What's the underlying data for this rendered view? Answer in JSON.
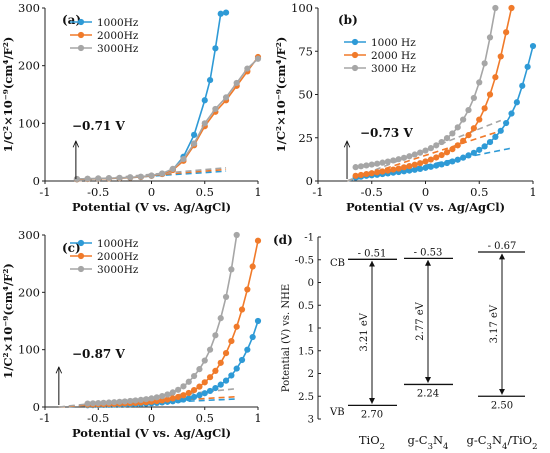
{
  "colors": {
    "1000Hz": "#2e9ad6",
    "2000Hz": "#f07a2a",
    "3000Hz": "#a6a6a6",
    "axis": "#222222"
  },
  "chart_data": [
    {
      "panel": "(a)",
      "type": "scatter",
      "xlabel": "Potential (V vs. Ag/AgCl)",
      "ylabel": "1/C²×10⁻⁹(cm⁴/F²)",
      "xlim": [
        -1,
        1
      ],
      "ylim": [
        0,
        300
      ],
      "xticks": [
        -1,
        -0.5,
        0,
        0.5,
        1
      ],
      "xtick_labels": [
        "-1",
        "-0.5",
        "0",
        "0.5",
        "1"
      ],
      "yticks": [
        0,
        100,
        200,
        300
      ],
      "ytick_labels": [
        "0",
        "100",
        "200",
        "300"
      ],
      "legend_position": "top-left",
      "annotation": "−0.71 V",
      "annotation_x": -0.71,
      "series": [
        {
          "name": "1000Hz",
          "x": [
            -0.7,
            -0.6,
            -0.5,
            -0.4,
            -0.3,
            -0.2,
            -0.1,
            0,
            0.1,
            0.2,
            0.3,
            0.4,
            0.5,
            0.55,
            0.6,
            0.65,
            0.7
          ],
          "y": [
            3,
            3.5,
            4,
            4.5,
            5,
            6,
            7,
            9,
            12,
            20,
            42,
            80,
            140,
            175,
            230,
            290,
            292
          ],
          "fit": {
            "x": [
              -0.71,
              0.7
            ],
            "y": [
              0,
              17
            ]
          }
        },
        {
          "name": "2000Hz",
          "x": [
            -0.7,
            -0.6,
            -0.5,
            -0.4,
            -0.3,
            -0.2,
            -0.1,
            0,
            0.1,
            0.2,
            0.3,
            0.4,
            0.5,
            0.6,
            0.7,
            0.8,
            0.9,
            1
          ],
          "y": [
            3,
            3.5,
            4,
            4.5,
            5,
            6,
            7,
            9,
            12,
            19,
            35,
            62,
            95,
            120,
            140,
            165,
            190,
            215
          ],
          "fit": {
            "x": [
              -0.71,
              0.7
            ],
            "y": [
              0,
              20
            ]
          }
        },
        {
          "name": "3000Hz",
          "x": [
            -0.7,
            -0.6,
            -0.5,
            -0.4,
            -0.3,
            -0.2,
            -0.1,
            0,
            0.1,
            0.2,
            0.3,
            0.4,
            0.5,
            0.6,
            0.7,
            0.8,
            0.9,
            1
          ],
          "y": [
            3.5,
            4,
            4.5,
            5,
            5.5,
            6.5,
            7.5,
            9.5,
            13,
            21,
            38,
            65,
            100,
            125,
            145,
            170,
            195,
            212
          ],
          "fit": {
            "x": [
              -0.71,
              0.7
            ],
            "y": [
              0,
              23
            ]
          }
        }
      ]
    },
    {
      "panel": "(b)",
      "type": "scatter",
      "xlabel": "Potential (V vs. Ag/AgCl)",
      "ylabel": "1/C²×10⁻⁹(cm⁴/F²)",
      "xlim": [
        -1,
        1
      ],
      "ylim": [
        0,
        100
      ],
      "xticks": [
        -1,
        -0.5,
        0,
        0.5,
        1
      ],
      "xtick_labels": [
        "-1",
        "-0.5",
        "0",
        "0.5",
        "1"
      ],
      "yticks": [
        0,
        25,
        50,
        75,
        100
      ],
      "ytick_labels": [
        "0",
        "25",
        "50",
        "75",
        "100"
      ],
      "legend_position": "top-left",
      "annotation": "−0.73 V",
      "annotation_x": -0.73,
      "series": [
        {
          "name": "1000 Hz",
          "x": [
            -0.65,
            -0.6,
            -0.55,
            -0.5,
            -0.45,
            -0.4,
            -0.35,
            -0.3,
            -0.25,
            -0.2,
            -0.15,
            -0.1,
            -0.05,
            0,
            0.05,
            0.1,
            0.15,
            0.2,
            0.25,
            0.3,
            0.35,
            0.4,
            0.45,
            0.5,
            0.55,
            0.6,
            0.65,
            0.7,
            0.75,
            0.8,
            0.85,
            0.9,
            0.95,
            1
          ],
          "y": [
            2,
            2.5,
            3,
            3.3,
            3.6,
            4,
            4.4,
            4.8,
            5.2,
            5.6,
            6,
            6.5,
            7,
            7.6,
            8.2,
            8.9,
            9.6,
            10.4,
            11.3,
            12.3,
            13.5,
            14.8,
            16.3,
            18,
            20,
            22.5,
            25.5,
            29,
            33.5,
            39,
            45.5,
            55,
            66,
            78
          ],
          "fit": {
            "x": [
              -0.73,
              0.8
            ],
            "y": [
              0,
              19
            ]
          }
        },
        {
          "name": "2000 Hz",
          "x": [
            -0.65,
            -0.6,
            -0.55,
            -0.5,
            -0.45,
            -0.4,
            -0.35,
            -0.3,
            -0.25,
            -0.2,
            -0.15,
            -0.1,
            -0.05,
            0,
            0.05,
            0.1,
            0.15,
            0.2,
            0.25,
            0.3,
            0.35,
            0.4,
            0.45,
            0.5,
            0.55,
            0.6,
            0.65,
            0.7,
            0.75,
            0.8
          ],
          "y": [
            3,
            3.5,
            4,
            4.5,
            5,
            5.5,
            6,
            6.6,
            7.2,
            7.9,
            8.6,
            9.4,
            10.3,
            11.3,
            12.4,
            13.6,
            15,
            16.6,
            18.4,
            20.6,
            23.2,
            26.5,
            30.5,
            35.5,
            42,
            50,
            60,
            72,
            86,
            100
          ],
          "fit": {
            "x": [
              -0.73,
              0.65
            ],
            "y": [
              0,
              28
            ]
          }
        },
        {
          "name": "3000 Hz",
          "x": [
            -0.65,
            -0.6,
            -0.55,
            -0.5,
            -0.45,
            -0.4,
            -0.35,
            -0.3,
            -0.25,
            -0.2,
            -0.15,
            -0.1,
            -0.05,
            0,
            0.05,
            0.1,
            0.15,
            0.2,
            0.25,
            0.3,
            0.35,
            0.4,
            0.45,
            0.5,
            0.55,
            0.6,
            0.65
          ],
          "y": [
            8,
            8.5,
            9,
            9.5,
            10,
            10.6,
            11.2,
            11.9,
            12.6,
            13.4,
            14.3,
            15.3,
            16.4,
            17.6,
            19,
            20.6,
            22.5,
            24.8,
            27.5,
            31,
            35.5,
            41,
            48,
            57,
            68,
            83,
            100
          ],
          "fit": {
            "x": [
              -0.73,
              0.7
            ],
            "y": [
              0,
              35
            ]
          }
        }
      ]
    },
    {
      "panel": "(c)",
      "type": "scatter",
      "xlabel": "Potential (V vs. Ag/AgCl)",
      "ylabel": "1/C²×10⁻⁹(cm⁴/F²)",
      "xlim": [
        -1,
        1
      ],
      "ylim": [
        0,
        300
      ],
      "xticks": [
        -1,
        -0.5,
        0,
        0.5,
        1
      ],
      "xtick_labels": [
        "-1",
        "-0.5",
        "0",
        "0.5",
        "1"
      ],
      "yticks": [
        0,
        100,
        200,
        300
      ],
      "ytick_labels": [
        "0",
        "100",
        "200",
        "300"
      ],
      "legend_position": "top-left",
      "annotation": "−0.87 V",
      "annotation_x": -0.87,
      "series": [
        {
          "name": "1000Hz",
          "x": [
            -0.6,
            -0.55,
            -0.5,
            -0.45,
            -0.4,
            -0.35,
            -0.3,
            -0.25,
            -0.2,
            -0.15,
            -0.1,
            -0.05,
            0,
            0.05,
            0.1,
            0.15,
            0.2,
            0.25,
            0.3,
            0.35,
            0.4,
            0.45,
            0.5,
            0.55,
            0.6,
            0.65,
            0.7,
            0.75,
            0.8,
            0.85,
            0.9,
            0.95,
            1
          ],
          "y": [
            3,
            3.2,
            3.4,
            3.6,
            3.8,
            4,
            4.2,
            4.5,
            4.8,
            5.1,
            5.5,
            6,
            6.5,
            7.2,
            8,
            9,
            10,
            11.5,
            13,
            15,
            17.5,
            20.5,
            24,
            28,
            33,
            39,
            46,
            55,
            67,
            82,
            100,
            122,
            150
          ],
          "fit": {
            "x": [
              -0.87,
              0.8
            ],
            "y": [
              0,
              14
            ]
          }
        },
        {
          "name": "2000Hz",
          "x": [
            -0.6,
            -0.55,
            -0.5,
            -0.45,
            -0.4,
            -0.35,
            -0.3,
            -0.25,
            -0.2,
            -0.15,
            -0.1,
            -0.05,
            0,
            0.05,
            0.1,
            0.15,
            0.2,
            0.25,
            0.3,
            0.35,
            0.4,
            0.45,
            0.5,
            0.55,
            0.6,
            0.65,
            0.7,
            0.75,
            0.8,
            0.85,
            0.9,
            0.95,
            1
          ],
          "y": [
            4,
            4.2,
            4.5,
            4.8,
            5.1,
            5.4,
            5.8,
            6.2,
            6.7,
            7.2,
            7.8,
            8.5,
            9.3,
            10.3,
            11.5,
            13,
            15,
            17.5,
            20.5,
            24.5,
            29.5,
            35.5,
            43,
            52,
            63,
            77,
            94,
            115,
            140,
            170,
            205,
            245,
            290
          ],
          "fit": {
            "x": [
              -0.87,
              0.8
            ],
            "y": [
              0,
              18
            ]
          }
        },
        {
          "name": "3000Hz",
          "x": [
            -0.6,
            -0.55,
            -0.5,
            -0.45,
            -0.4,
            -0.35,
            -0.3,
            -0.25,
            -0.2,
            -0.15,
            -0.1,
            -0.05,
            0,
            0.05,
            0.1,
            0.15,
            0.2,
            0.25,
            0.3,
            0.35,
            0.4,
            0.45,
            0.5,
            0.55,
            0.6,
            0.65,
            0.7,
            0.75,
            0.8
          ],
          "y": [
            6,
            6.4,
            6.8,
            7.3,
            7.8,
            8.4,
            9,
            9.7,
            10.5,
            11.4,
            12.4,
            13.6,
            15,
            16.8,
            19,
            21.8,
            25.5,
            30,
            36,
            44,
            54,
            66,
            81,
            100,
            125,
            155,
            192,
            240,
            300
          ],
          "fit": {
            "x": [
              -0.87,
              0.8
            ],
            "y": [
              0,
              32
            ]
          }
        }
      ]
    },
    {
      "panel": "(d)",
      "type": "diagram",
      "ylabel": "Potential (V) vs. NHE",
      "ylim": [
        -1,
        3
      ],
      "yticks": [
        -1,
        -0.5,
        0,
        0.5,
        1,
        1.5,
        2,
        2.5,
        3
      ],
      "ytick_labels": [
        "-1",
        "-0.5",
        "0",
        "0.5",
        "1",
        "1.5",
        "2",
        "2.5",
        "3"
      ],
      "band_labels": {
        "cb": "CB",
        "vb": "VB"
      },
      "materials": [
        {
          "name": "TiO2",
          "formula_parts": [
            [
              "TiO",
              ""
            ],
            [
              "2",
              "sub"
            ]
          ],
          "cb": -0.51,
          "vb": 2.7,
          "cb_label": "- 0.51",
          "vb_label": "2.70",
          "gap_label": "3.21 eV"
        },
        {
          "name": "g-C3N4",
          "formula_parts": [
            [
              "g-C",
              ""
            ],
            [
              "3",
              "sub"
            ],
            [
              "N",
              ""
            ],
            [
              "4",
              "sub"
            ]
          ],
          "cb": -0.53,
          "vb": 2.24,
          "cb_label": "- 0.53",
          "vb_label": "2.24",
          "gap_label": "2.77 eV"
        },
        {
          "name": "g-C3N4/TiO2",
          "formula_parts": [
            [
              "g-C",
              ""
            ],
            [
              "3",
              "sub"
            ],
            [
              "N",
              ""
            ],
            [
              "4",
              "sub"
            ],
            [
              "/TiO",
              ""
            ],
            [
              "2",
              "sub"
            ]
          ],
          "cb": -0.67,
          "vb": 2.5,
          "cb_label": "- 0.67",
          "vb_label": "2.50",
          "gap_label": "3.17 eV"
        }
      ]
    }
  ]
}
